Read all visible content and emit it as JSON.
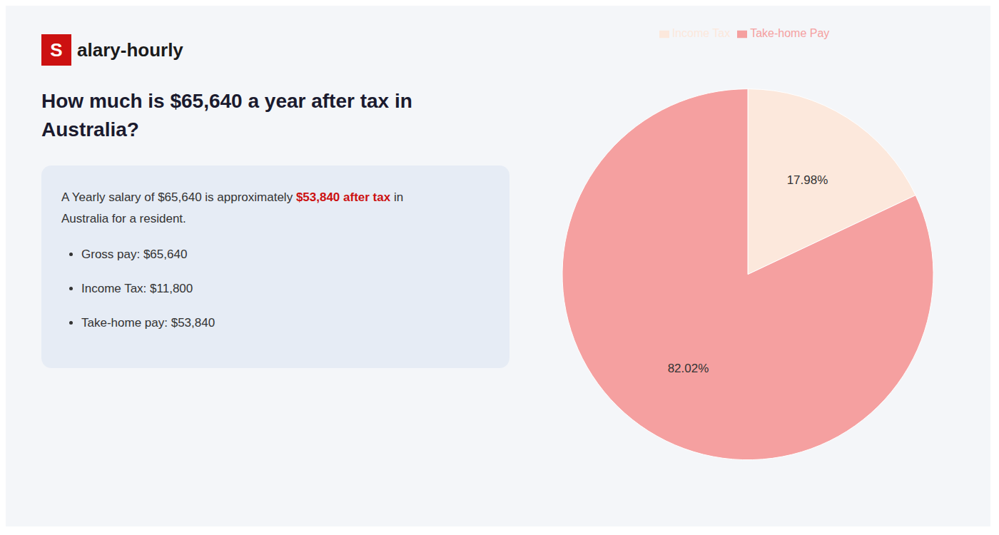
{
  "chart_data": {
    "type": "pie",
    "title": [
      "How much is $65,640 a year after tax in",
      "Australia?"
    ],
    "annotations": [
      {
        "text": "S",
        "color": "#cc1111"
      },
      {
        "text": "alary-hourly"
      },
      {
        "text": "A Yearly salary of $65,640 is approximately "
      },
      {
        "text": "$53,840 after tax",
        "color": "#cc1111"
      },
      {
        "text": " in"
      },
      {
        "text": "Australia for a resident."
      },
      {
        "text": "Gross pay: $65,640"
      },
      {
        "text": "Income Tax: $11,800"
      },
      {
        "text": "Take-home pay: $53,840"
      }
    ],
    "categories": [
      "Income Tax",
      "Take-home Pay"
    ],
    "values": [
      17.98,
      82.02
    ],
    "colors": [
      "#fce8dc",
      "#f5a0a0"
    ],
    "value_labels": [
      "17.98%",
      "82.02%"
    ],
    "data_labels": true,
    "legend": "top"
  }
}
